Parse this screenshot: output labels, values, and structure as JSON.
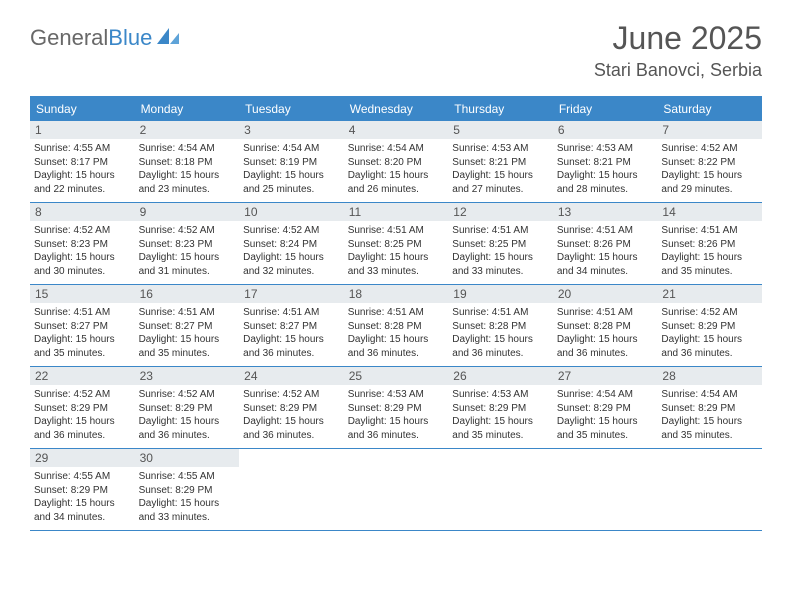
{
  "logo": {
    "text_general": "General",
    "text_blue": "Blue"
  },
  "title": "June 2025",
  "location": "Stari Banovci, Serbia",
  "colors": {
    "accent": "#3b87c8",
    "daynum_bg": "#e7ebee",
    "text": "#333333",
    "muted": "#686868"
  },
  "day_names": [
    "Sunday",
    "Monday",
    "Tuesday",
    "Wednesday",
    "Thursday",
    "Friday",
    "Saturday"
  ],
  "weeks": [
    [
      {
        "n": "1",
        "sr": "4:55 AM",
        "ss": "8:17 PM",
        "dh": "15",
        "dm": "22"
      },
      {
        "n": "2",
        "sr": "4:54 AM",
        "ss": "8:18 PM",
        "dh": "15",
        "dm": "23"
      },
      {
        "n": "3",
        "sr": "4:54 AM",
        "ss": "8:19 PM",
        "dh": "15",
        "dm": "25"
      },
      {
        "n": "4",
        "sr": "4:54 AM",
        "ss": "8:20 PM",
        "dh": "15",
        "dm": "26"
      },
      {
        "n": "5",
        "sr": "4:53 AM",
        "ss": "8:21 PM",
        "dh": "15",
        "dm": "27"
      },
      {
        "n": "6",
        "sr": "4:53 AM",
        "ss": "8:21 PM",
        "dh": "15",
        "dm": "28"
      },
      {
        "n": "7",
        "sr": "4:52 AM",
        "ss": "8:22 PM",
        "dh": "15",
        "dm": "29"
      }
    ],
    [
      {
        "n": "8",
        "sr": "4:52 AM",
        "ss": "8:23 PM",
        "dh": "15",
        "dm": "30"
      },
      {
        "n": "9",
        "sr": "4:52 AM",
        "ss": "8:23 PM",
        "dh": "15",
        "dm": "31"
      },
      {
        "n": "10",
        "sr": "4:52 AM",
        "ss": "8:24 PM",
        "dh": "15",
        "dm": "32"
      },
      {
        "n": "11",
        "sr": "4:51 AM",
        "ss": "8:25 PM",
        "dh": "15",
        "dm": "33"
      },
      {
        "n": "12",
        "sr": "4:51 AM",
        "ss": "8:25 PM",
        "dh": "15",
        "dm": "33"
      },
      {
        "n": "13",
        "sr": "4:51 AM",
        "ss": "8:26 PM",
        "dh": "15",
        "dm": "34"
      },
      {
        "n": "14",
        "sr": "4:51 AM",
        "ss": "8:26 PM",
        "dh": "15",
        "dm": "35"
      }
    ],
    [
      {
        "n": "15",
        "sr": "4:51 AM",
        "ss": "8:27 PM",
        "dh": "15",
        "dm": "35"
      },
      {
        "n": "16",
        "sr": "4:51 AM",
        "ss": "8:27 PM",
        "dh": "15",
        "dm": "35"
      },
      {
        "n": "17",
        "sr": "4:51 AM",
        "ss": "8:27 PM",
        "dh": "15",
        "dm": "36"
      },
      {
        "n": "18",
        "sr": "4:51 AM",
        "ss": "8:28 PM",
        "dh": "15",
        "dm": "36"
      },
      {
        "n": "19",
        "sr": "4:51 AM",
        "ss": "8:28 PM",
        "dh": "15",
        "dm": "36"
      },
      {
        "n": "20",
        "sr": "4:51 AM",
        "ss": "8:28 PM",
        "dh": "15",
        "dm": "36"
      },
      {
        "n": "21",
        "sr": "4:52 AM",
        "ss": "8:29 PM",
        "dh": "15",
        "dm": "36"
      }
    ],
    [
      {
        "n": "22",
        "sr": "4:52 AM",
        "ss": "8:29 PM",
        "dh": "15",
        "dm": "36"
      },
      {
        "n": "23",
        "sr": "4:52 AM",
        "ss": "8:29 PM",
        "dh": "15",
        "dm": "36"
      },
      {
        "n": "24",
        "sr": "4:52 AM",
        "ss": "8:29 PM",
        "dh": "15",
        "dm": "36"
      },
      {
        "n": "25",
        "sr": "4:53 AM",
        "ss": "8:29 PM",
        "dh": "15",
        "dm": "36"
      },
      {
        "n": "26",
        "sr": "4:53 AM",
        "ss": "8:29 PM",
        "dh": "15",
        "dm": "35"
      },
      {
        "n": "27",
        "sr": "4:54 AM",
        "ss": "8:29 PM",
        "dh": "15",
        "dm": "35"
      },
      {
        "n": "28",
        "sr": "4:54 AM",
        "ss": "8:29 PM",
        "dh": "15",
        "dm": "35"
      }
    ],
    [
      {
        "n": "29",
        "sr": "4:55 AM",
        "ss": "8:29 PM",
        "dh": "15",
        "dm": "34"
      },
      {
        "n": "30",
        "sr": "4:55 AM",
        "ss": "8:29 PM",
        "dh": "15",
        "dm": "33"
      },
      null,
      null,
      null,
      null,
      null
    ]
  ],
  "labels": {
    "sunrise": "Sunrise:",
    "sunset": "Sunset:",
    "daylight_prefix": "Daylight:",
    "hours_word": "hours",
    "and_word": "and",
    "minutes_word": "minutes."
  }
}
